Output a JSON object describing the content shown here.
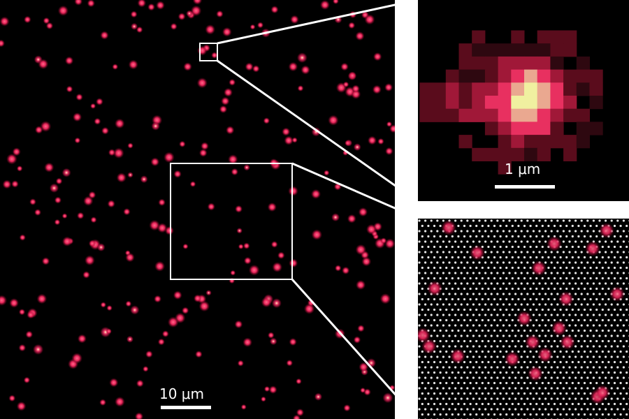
{
  "main_panel": {
    "scale_bar_label": "10 μm"
  },
  "zoom_inset_single": {
    "scale_bar_label": "1 μm"
  },
  "zoom_inset_lattice": {},
  "colors": {
    "background": "#000000",
    "spot": "#e8245a",
    "spot_core": "#f5f0a0",
    "lattice_dot": "#e6e6e6",
    "frame": "#ffffff"
  }
}
